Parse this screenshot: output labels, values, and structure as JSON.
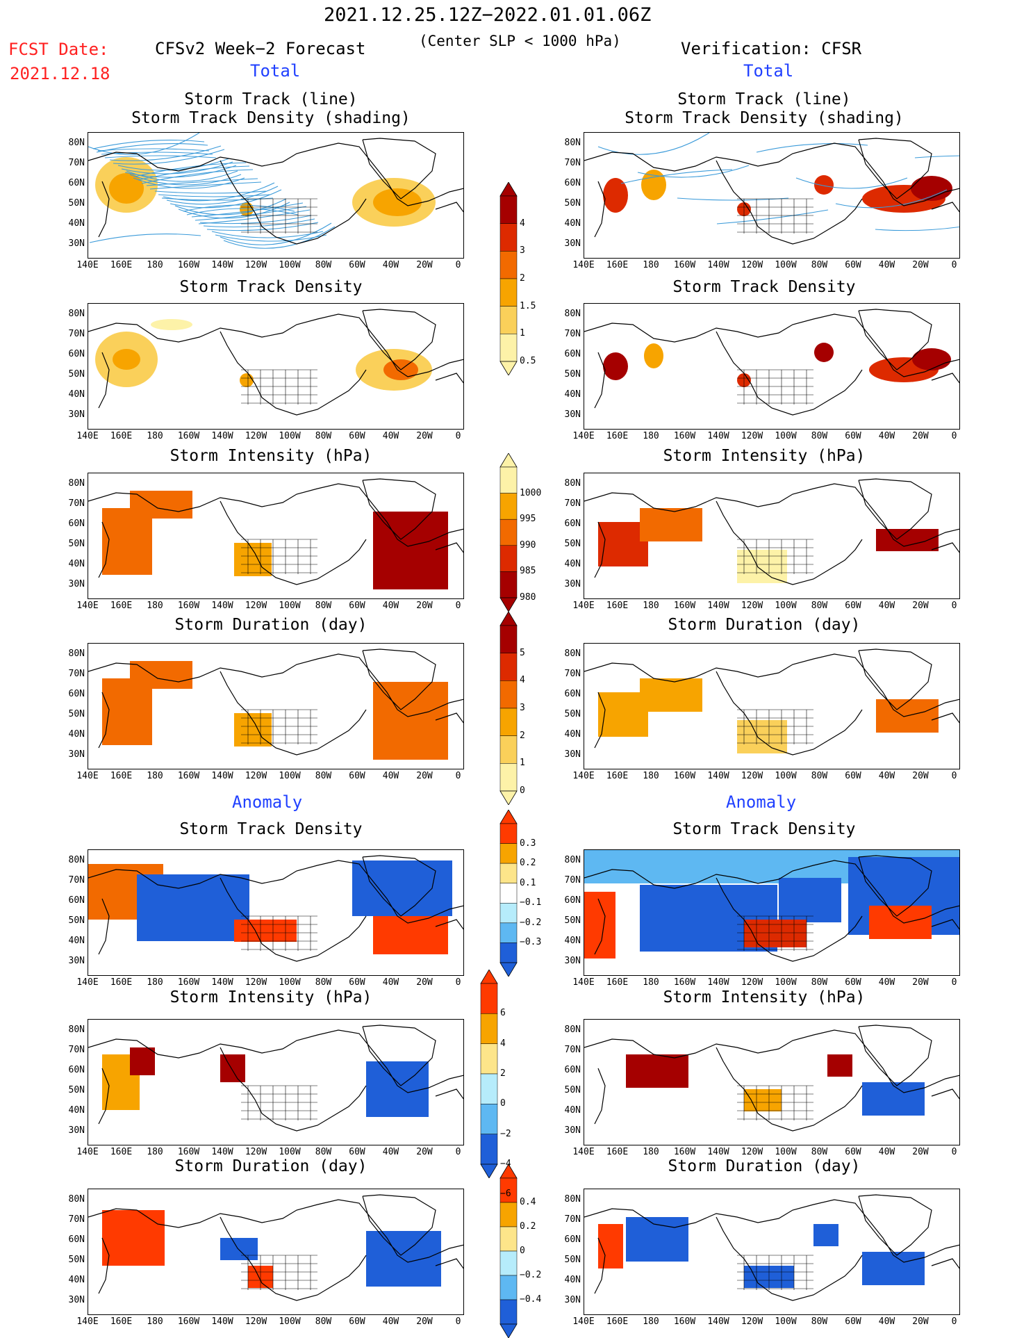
{
  "header": {
    "period": "2021.12.25.12Z−2022.01.01.06Z",
    "criterion": "(Center SLP < 1000 hPa)",
    "fcst_label": "FCST Date:",
    "fcst_date": "2021.12.18",
    "left_title": "CFSv2 Week−2 Forecast",
    "right_title": "Verification: CFSR",
    "total_left": "Total",
    "total_right": "Total",
    "anomaly_left": "Anomaly",
    "anomaly_right": "Anomaly"
  },
  "panel_titles": {
    "track_line": "Storm Track (line)",
    "track_shading": "Storm Track Density (shading)",
    "density": "Storm Track Density",
    "intensity": "Storm Intensity (hPa)",
    "duration": "Storm Duration (day)"
  },
  "axes": {
    "lat_labels": [
      "80N",
      "70N",
      "60N",
      "50N",
      "40N",
      "30N"
    ],
    "lon_labels": [
      "140E",
      "160E",
      "180",
      "160W",
      "140W",
      "120W",
      "100W",
      "80W",
      "60W",
      "40W",
      "20W",
      "0"
    ]
  },
  "colorbars": {
    "density_total": {
      "labels": [
        "4",
        "3",
        "2",
        "1.5",
        "1",
        "0.5"
      ],
      "colors": [
        "#a50000",
        "#dd2a00",
        "#f26a00",
        "#f7a400",
        "#fad05a",
        "#fdf2a8"
      ]
    },
    "intensity_total": {
      "labels": [
        "1000",
        "995",
        "990",
        "985",
        "980"
      ],
      "colors": [
        "#fdf2a8",
        "#f7a400",
        "#f26a00",
        "#dd2a00",
        "#a50000"
      ]
    },
    "duration_total": {
      "labels": [
        "5",
        "4",
        "3",
        "2",
        "1",
        "0"
      ],
      "colors": [
        "#a50000",
        "#dd2a00",
        "#f26a00",
        "#f7a400",
        "#fad05a",
        "#fdf2a8"
      ]
    },
    "density_anom": {
      "labels": [
        "0.3",
        "0.2",
        "0.1",
        "−0.1",
        "−0.2",
        "−0.3"
      ],
      "colors": [
        "#ff3a00",
        "#f7a400",
        "#fde58a",
        "#ffffff",
        "#b6ecfb",
        "#5eb8f2",
        "#1f5fd8"
      ]
    },
    "intensity_anom": {
      "labels": [
        "6",
        "4",
        "2",
        "0",
        "−2",
        "−4",
        "−6"
      ],
      "colors": [
        "#ff3a00",
        "#f7a400",
        "#fde58a",
        "#b6ecfb",
        "#5eb8f2",
        "#1f5fd8"
      ]
    },
    "duration_anom": {
      "labels": [
        "0.4",
        "0.2",
        "0",
        "−0.2",
        "−0.4"
      ],
      "colors": [
        "#ff3a00",
        "#f7a400",
        "#fde58a",
        "#b6ecfb",
        "#5eb8f2",
        "#1f5fd8"
      ]
    }
  },
  "colors": {
    "header_red": "#ff2020",
    "header_blue": "#2040ff",
    "track_line": "#3a9ad9"
  }
}
